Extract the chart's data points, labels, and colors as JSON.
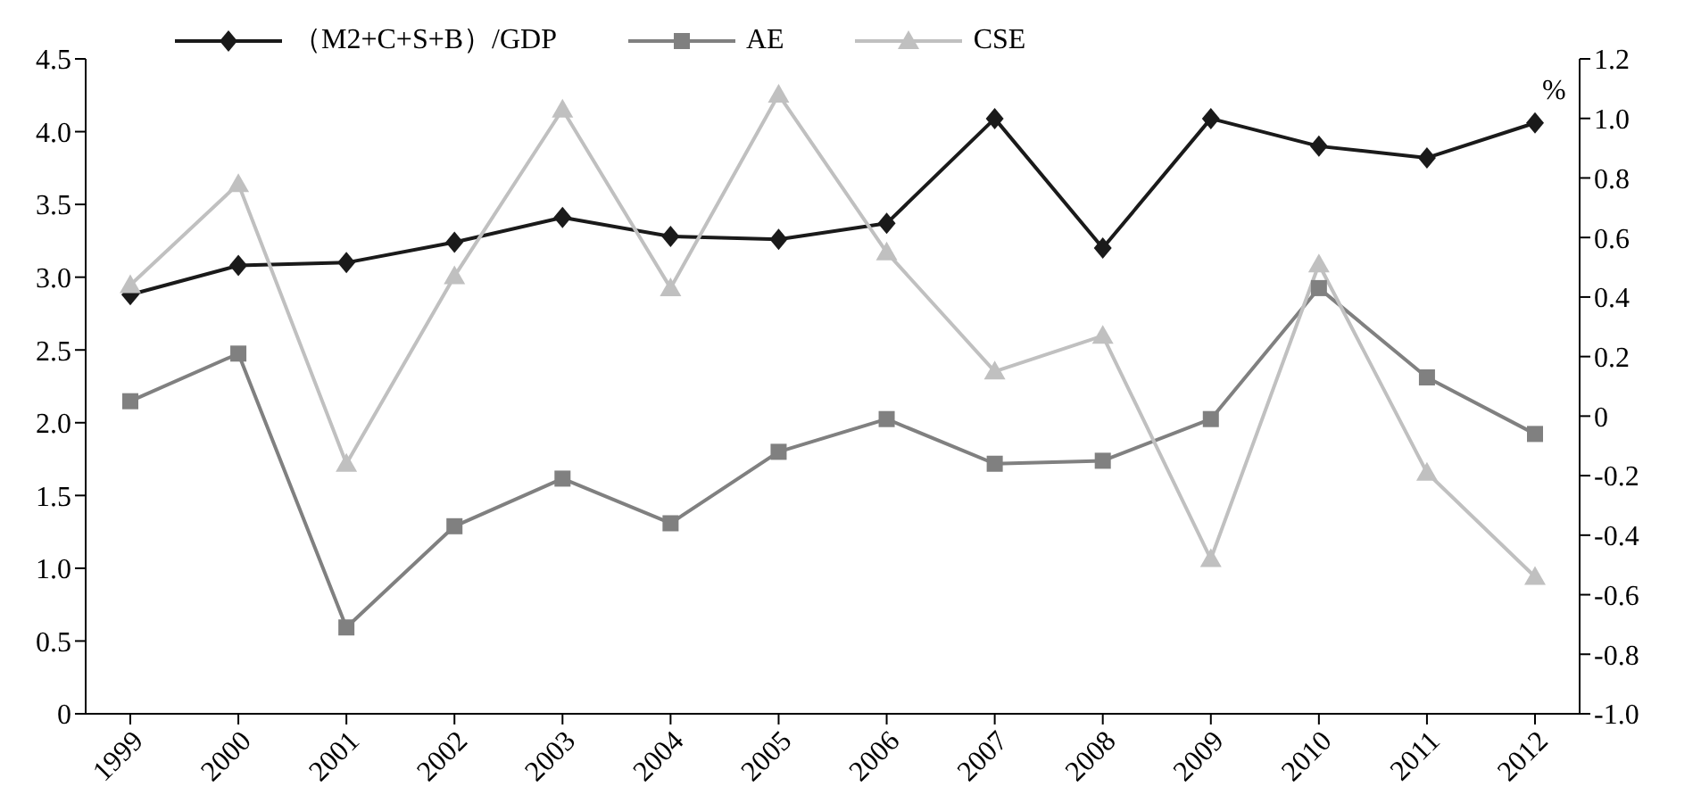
{
  "chart_data": {
    "type": "line",
    "categories": [
      "1999",
      "2000",
      "2001",
      "2002",
      "2003",
      "2004",
      "2005",
      "2006",
      "2007",
      "2008",
      "2009",
      "2010",
      "2011",
      "2012"
    ],
    "series": [
      {
        "name": "（M2+C+S+B）/GDP",
        "color": "#1a1a1a",
        "marker": "diamond",
        "values": [
          2.88,
          3.08,
          3.1,
          3.24,
          3.41,
          3.28,
          3.26,
          3.37,
          4.09,
          3.2,
          4.09,
          3.9,
          3.82,
          4.06
        ]
      },
      {
        "name": "AE",
        "color": "#808080",
        "marker": "square",
        "axis": "y2",
        "values": [
          0.05,
          0.21,
          -0.71,
          -0.37,
          -0.21,
          -0.36,
          -0.12,
          -0.01,
          -0.16,
          -0.15,
          -0.01,
          0.43,
          0.13,
          -0.06
        ]
      },
      {
        "name": "CSE",
        "color": "#c0c0c0",
        "marker": "triangle",
        "axis": "y2",
        "values": [
          0.44,
          0.78,
          -0.16,
          0.47,
          1.03,
          0.43,
          1.08,
          0.55,
          0.15,
          0.27,
          -0.48,
          0.51,
          -0.19,
          -0.54
        ]
      }
    ],
    "y2label": "%",
    "ylim": [
      0,
      4.5
    ],
    "yticks": [
      0,
      {
        "value": 0.5,
        "label": "0.5"
      },
      {
        "value": 1,
        "label": "1.0"
      },
      {
        "value": 1.5,
        "label": "1.5"
      },
      {
        "value": 2,
        "label": "2.0"
      },
      {
        "value": 2.5,
        "label": "2.5"
      },
      {
        "value": 3,
        "label": "3.0"
      },
      {
        "value": 3.5,
        "label": "3.5"
      },
      {
        "value": 4,
        "label": "4.0"
      },
      {
        "value": 4.5,
        "label": "4.5"
      }
    ],
    "y2lim": [
      -1,
      1.2
    ],
    "y2ticks": [
      {
        "value": -1,
        "label": "-1.0"
      },
      -0.8,
      -0.6,
      -0.4,
      -0.2,
      0,
      0.2,
      0.4,
      0.6,
      0.8,
      {
        "value": 1,
        "label": "1.0"
      },
      1.2
    ],
    "legend": "top",
    "line_style": "solid"
  }
}
